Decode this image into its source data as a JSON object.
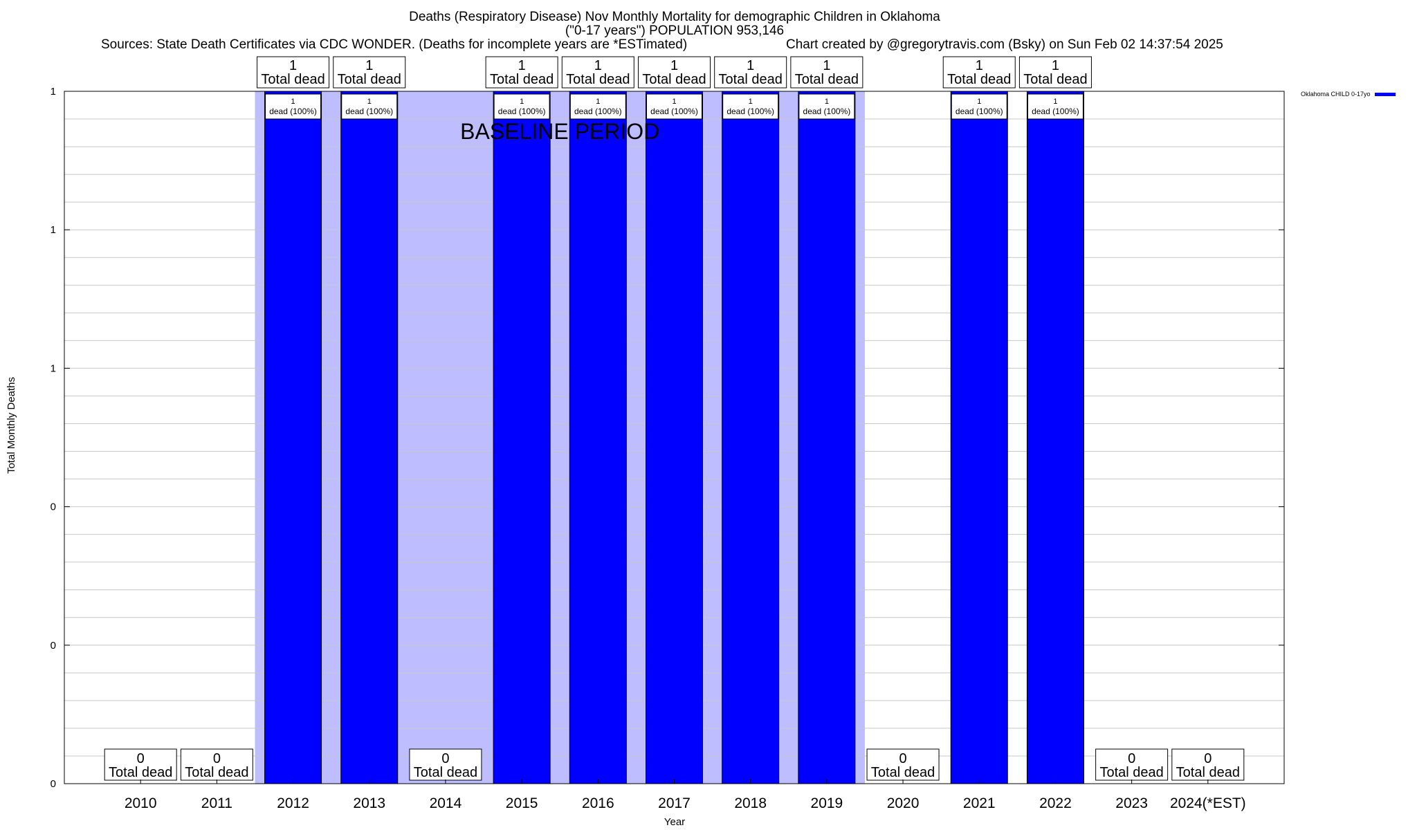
{
  "chart_data": {
    "type": "bar",
    "title_lines": [
      "Deaths (Respiratory Disease) Nov Monthly Mortality for demographic Children in Oklahoma",
      "(\"0-17 years\") POPULATION 953,146"
    ],
    "sources_text": "Sources: State Death Certificates via CDC WONDER. (Deaths for incomplete years are *ESTimated)",
    "credit_text": "Chart created by @gregorytravis.com (Bsky) on Sun Feb 02 14:37:54 2025",
    "xlabel": "Year",
    "ylabel": "Total Monthly Deaths",
    "categories": [
      "2010",
      "2011",
      "2012",
      "2013",
      "2014",
      "2015",
      "2016",
      "2017",
      "2018",
      "2019",
      "2020",
      "2021",
      "2022",
      "2023",
      "2024(*EST)"
    ],
    "series": [
      {
        "name": "Oklahoma CHILD 0-17yo",
        "values": [
          0,
          0,
          1,
          1,
          0,
          1,
          1,
          1,
          1,
          1,
          0,
          1,
          1,
          0,
          0
        ],
        "color": "#0000ff"
      }
    ],
    "total_label_line2": "Total dead",
    "bar_inner_labels": [
      "1",
      "dead (100%)"
    ],
    "yticks": [
      {
        "value": 0,
        "label": "0"
      },
      {
        "value": 0.2,
        "label": "0"
      },
      {
        "value": 0.4,
        "label": "0"
      },
      {
        "value": 0.6,
        "label": "1"
      },
      {
        "value": 0.8,
        "label": "1"
      },
      {
        "value": 1.0,
        "label": "1"
      }
    ],
    "ylim": [
      0,
      1
    ],
    "grid": true,
    "legend_position": "top-right",
    "baseline_period": {
      "label": "BASELINE PERIOD",
      "start": "2012",
      "end": "2019",
      "color": "#bdbdff"
    }
  }
}
